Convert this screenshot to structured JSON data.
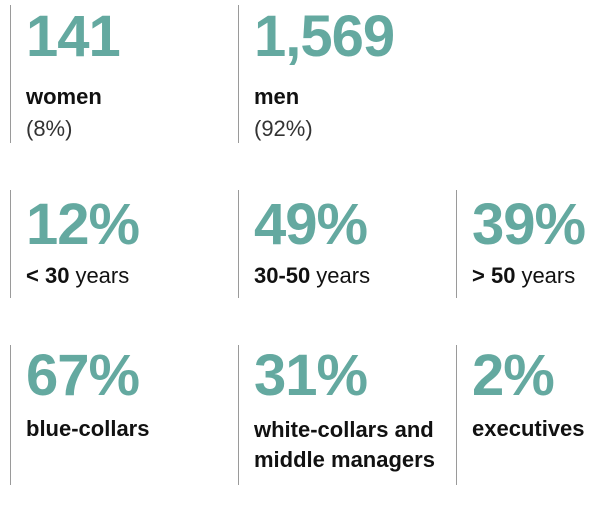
{
  "rows": [
    {
      "items": [
        {
          "number": "141",
          "label": "women",
          "note": "(8%)"
        },
        {
          "number": "1,569",
          "label": "men",
          "note": "(92%)"
        }
      ]
    },
    {
      "items": [
        {
          "number": "12%",
          "label": "< 30",
          "suffix": "years"
        },
        {
          "number": "49%",
          "label": "30-50",
          "suffix": "years"
        },
        {
          "number": "39%",
          "label": "> 50",
          "suffix": "years"
        }
      ]
    },
    {
      "items": [
        {
          "number": "67%",
          "label": "blue-collars"
        },
        {
          "number": "31%",
          "label": "white-collars and middle managers"
        },
        {
          "number": "2%",
          "label": "executives"
        }
      ]
    }
  ]
}
